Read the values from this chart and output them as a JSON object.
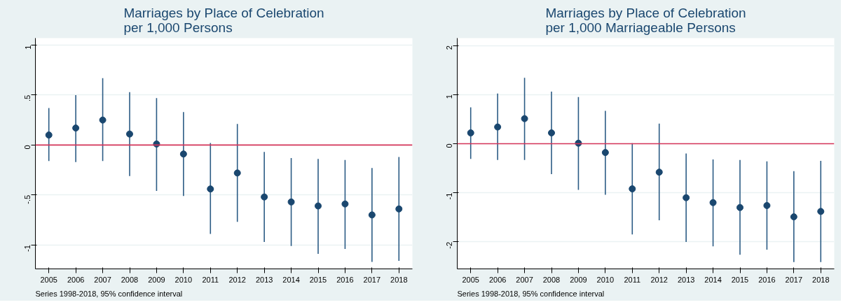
{
  "chart_data": [
    {
      "type": "scatter",
      "title": "Marriages by Place of Celebration\nper 1,000 Persons",
      "categories": [
        "2005",
        "2006",
        "2007",
        "2008",
        "2009",
        "2010",
        "2011",
        "2012",
        "2013",
        "2014",
        "2015",
        "2016",
        "2017",
        "2018"
      ],
      "series": [
        {
          "color": "#1a476f",
          "values": [
            0.1,
            0.17,
            0.25,
            0.11,
            0.01,
            -0.09,
            -0.44,
            -0.28,
            -0.52,
            -0.57,
            -0.61,
            -0.59,
            -0.7,
            -0.64
          ],
          "errors": [
            [
              -0.16,
              0.37
            ],
            [
              -0.17,
              0.5
            ],
            [
              -0.16,
              0.67
            ],
            [
              -0.31,
              0.53
            ],
            [
              -0.46,
              0.47
            ],
            [
              -0.51,
              0.33
            ],
            [
              -0.89,
              0.02
            ],
            [
              -0.77,
              0.21
            ],
            [
              -0.97,
              -0.07
            ],
            [
              -1.01,
              -0.13
            ],
            [
              -1.09,
              -0.14
            ],
            [
              -1.04,
              -0.15
            ],
            [
              -1.17,
              -0.23
            ],
            [
              -1.16,
              -0.12
            ]
          ]
        }
      ],
      "ylim": [
        -1.24,
        1.07
      ],
      "yticks": [
        {
          "value": -1,
          "label": "-1"
        },
        {
          "value": -0.5,
          "label": "-.5"
        },
        {
          "value": 0,
          "label": "0"
        },
        {
          "value": 0.5,
          "label": ".5"
        },
        {
          "value": 1,
          "label": "1"
        }
      ],
      "ref_lines": [
        {
          "axis": "y",
          "value": 0,
          "color": "#d6345a"
        }
      ],
      "grid": "y",
      "marker": "circle",
      "annotations": [
        "Series 1998-2018, 95% confidence interval"
      ]
    },
    {
      "type": "scatter",
      "title": "Marriages by Place of Celebration\nper 1,000 Marriageable Persons",
      "categories": [
        "2005",
        "2006",
        "2007",
        "2008",
        "2009",
        "2010",
        "2011",
        "2012",
        "2013",
        "2014",
        "2015",
        "2016",
        "2017",
        "2018"
      ],
      "series": [
        {
          "color": "#1a476f",
          "values": [
            0.22,
            0.34,
            0.51,
            0.22,
            0.01,
            -0.18,
            -0.92,
            -0.58,
            -1.1,
            -1.2,
            -1.3,
            -1.26,
            -1.49,
            -1.38
          ],
          "errors": [
            [
              -0.31,
              0.74
            ],
            [
              -0.33,
              1.02
            ],
            [
              -0.33,
              1.34
            ],
            [
              -0.62,
              1.06
            ],
            [
              -0.94,
              0.95
            ],
            [
              -1.04,
              0.67
            ],
            [
              -1.85,
              0.01
            ],
            [
              -1.56,
              0.41
            ],
            [
              -2.0,
              -0.2
            ],
            [
              -2.09,
              -0.32
            ],
            [
              -2.26,
              -0.33
            ],
            [
              -2.16,
              -0.36
            ],
            [
              -2.41,
              -0.56
            ],
            [
              -2.41,
              -0.35
            ]
          ]
        }
      ],
      "ylim": [
        -2.55,
        2.15
      ],
      "yticks": [
        -2,
        -1,
        0,
        1,
        2
      ],
      "ref_lines": [
        {
          "axis": "y",
          "value": 0,
          "color": "#d6345a"
        }
      ],
      "grid": "y",
      "marker": "circle",
      "annotations": [
        "Series 1998-2018, 95% confidence interval"
      ]
    }
  ]
}
